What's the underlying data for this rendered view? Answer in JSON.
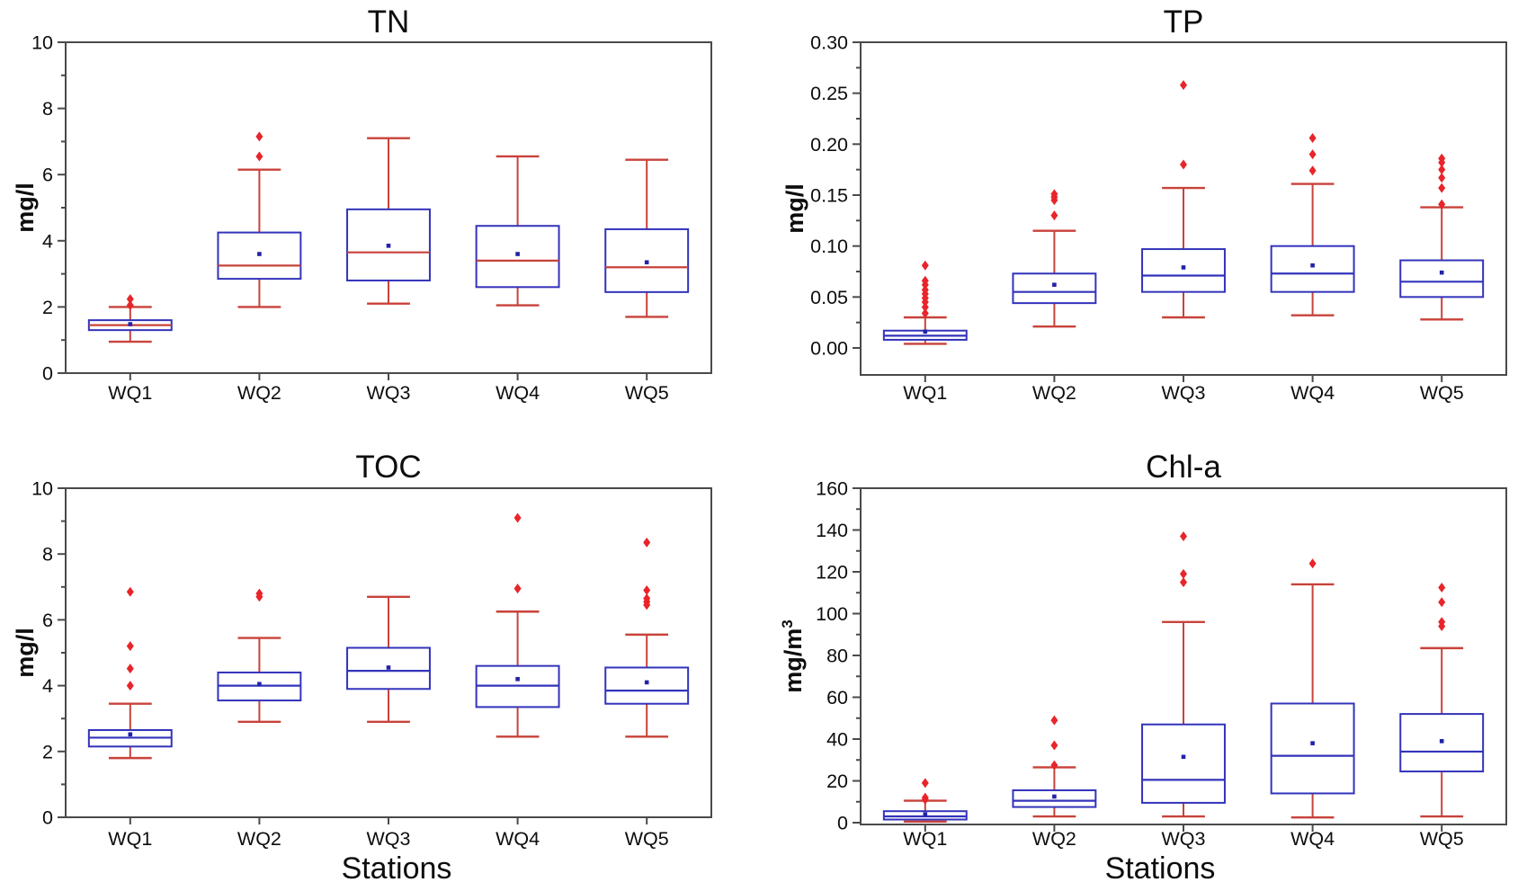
{
  "figure": {
    "background": "#ffffff"
  },
  "colors": {
    "box_stroke": "#3333bb",
    "median_blue": "#3333bb",
    "median_red": "#c8423a",
    "whisker": "#c8423a",
    "outlier": "#e8252a",
    "mean_marker": "#2222aa",
    "axis": "#4a4a4a",
    "text": "#0d0d0d"
  },
  "chart_data": [
    {
      "id": "tn",
      "type": "box",
      "title": "TN",
      "ylabel": "mg/l",
      "ylabel_superscript": "",
      "xlabel": "",
      "categories": [
        "WQ1",
        "WQ2",
        "WQ3",
        "WQ4",
        "WQ5"
      ],
      "ylim": [
        0,
        10
      ],
      "yticks": [
        "0",
        "2",
        "4",
        "6",
        "8",
        "10"
      ],
      "ytick_step": 2,
      "yminor_step": 1,
      "ytick_decimals": 0,
      "grid": false,
      "median_color_key": "median_red",
      "boxes": [
        {
          "category": "WQ1",
          "whisker_low": 0.95,
          "q1": 1.3,
          "median": 1.45,
          "q3": 1.6,
          "whisker_high": 2.0,
          "mean": 1.48,
          "outliers": [
            2.05,
            2.24
          ]
        },
        {
          "category": "WQ2",
          "whisker_low": 2.0,
          "q1": 2.85,
          "median": 3.25,
          "q3": 4.25,
          "whisker_high": 6.15,
          "mean": 3.6,
          "outliers": [
            6.55,
            7.15
          ]
        },
        {
          "category": "WQ3",
          "whisker_low": 2.1,
          "q1": 2.8,
          "median": 3.65,
          "q3": 4.95,
          "whisker_high": 7.1,
          "mean": 3.85,
          "outliers": []
        },
        {
          "category": "WQ4",
          "whisker_low": 2.05,
          "q1": 2.6,
          "median": 3.4,
          "q3": 4.45,
          "whisker_high": 6.55,
          "mean": 3.6,
          "outliers": []
        },
        {
          "category": "WQ5",
          "whisker_low": 1.7,
          "q1": 2.45,
          "median": 3.2,
          "q3": 4.35,
          "whisker_high": 6.45,
          "mean": 3.35,
          "outliers": []
        }
      ]
    },
    {
      "id": "tp",
      "type": "box",
      "title": "TP",
      "ylabel": "mg/l",
      "ylabel_superscript": "",
      "xlabel": "",
      "categories": [
        "WQ1",
        "WQ2",
        "WQ3",
        "WQ4",
        "WQ5"
      ],
      "ylim": [
        0,
        0.3
      ],
      "yticks": [
        "0.00",
        "0.05",
        "0.10",
        "0.15",
        "0.20",
        "0.25",
        "0.30"
      ],
      "ytick_step": 0.05,
      "yminor_step": 0.025,
      "ytick_decimals": 2,
      "grid": false,
      "median_color_key": "median_blue",
      "boxes": [
        {
          "category": "WQ1",
          "whisker_low": 0.004,
          "q1": 0.008,
          "median": 0.012,
          "q3": 0.017,
          "whisker_high": 0.03,
          "mean": 0.016,
          "outliers": [
            0.034,
            0.04,
            0.045,
            0.049,
            0.053,
            0.057,
            0.062,
            0.066,
            0.081
          ]
        },
        {
          "category": "WQ2",
          "whisker_low": 0.021,
          "q1": 0.044,
          "median": 0.055,
          "q3": 0.073,
          "whisker_high": 0.115,
          "mean": 0.062,
          "outliers": [
            0.13,
            0.145,
            0.148,
            0.151
          ]
        },
        {
          "category": "WQ3",
          "whisker_low": 0.03,
          "q1": 0.055,
          "median": 0.071,
          "q3": 0.097,
          "whisker_high": 0.157,
          "mean": 0.079,
          "outliers": [
            0.18,
            0.258
          ]
        },
        {
          "category": "WQ4",
          "whisker_low": 0.032,
          "q1": 0.055,
          "median": 0.073,
          "q3": 0.1,
          "whisker_high": 0.161,
          "mean": 0.081,
          "outliers": [
            0.174,
            0.19,
            0.206
          ]
        },
        {
          "category": "WQ5",
          "whisker_low": 0.028,
          "q1": 0.05,
          "median": 0.065,
          "q3": 0.086,
          "whisker_high": 0.138,
          "mean": 0.074,
          "outliers": [
            0.141,
            0.157,
            0.167,
            0.175,
            0.182,
            0.186
          ]
        }
      ]
    },
    {
      "id": "toc",
      "type": "box",
      "title": "TOC",
      "ylabel": "mg/l",
      "ylabel_superscript": "",
      "xlabel": "Stations",
      "categories": [
        "WQ1",
        "WQ2",
        "WQ3",
        "WQ4",
        "WQ5"
      ],
      "ylim": [
        0,
        10
      ],
      "yticks": [
        "0",
        "2",
        "4",
        "6",
        "8",
        "10"
      ],
      "ytick_step": 2,
      "yminor_step": 1,
      "ytick_decimals": 0,
      "grid": false,
      "median_color_key": "median_blue",
      "boxes": [
        {
          "category": "WQ1",
          "whisker_low": 1.8,
          "q1": 2.15,
          "median": 2.42,
          "q3": 2.65,
          "whisker_high": 3.45,
          "mean": 2.52,
          "outliers": [
            4.0,
            4.52,
            5.2,
            6.85
          ]
        },
        {
          "category": "WQ2",
          "whisker_low": 2.9,
          "q1": 3.55,
          "median": 4.0,
          "q3": 4.4,
          "whisker_high": 5.45,
          "mean": 4.05,
          "outliers": [
            6.7,
            6.8
          ]
        },
        {
          "category": "WQ3",
          "whisker_low": 2.9,
          "q1": 3.9,
          "median": 4.45,
          "q3": 5.15,
          "whisker_high": 6.7,
          "mean": 4.55,
          "outliers": []
        },
        {
          "category": "WQ4",
          "whisker_low": 2.45,
          "q1": 3.35,
          "median": 4.0,
          "q3": 4.6,
          "whisker_high": 6.25,
          "mean": 4.2,
          "outliers": [
            6.95,
            9.1
          ]
        },
        {
          "category": "WQ5",
          "whisker_low": 2.45,
          "q1": 3.45,
          "median": 3.85,
          "q3": 4.55,
          "whisker_high": 5.55,
          "mean": 4.1,
          "outliers": [
            6.45,
            6.55,
            6.65,
            6.9,
            8.35
          ]
        }
      ]
    },
    {
      "id": "chl",
      "type": "box",
      "title": "Chl-a",
      "ylabel": "mg/m",
      "ylabel_superscript": "3",
      "xlabel": "Stations",
      "categories": [
        "WQ1",
        "WQ2",
        "WQ3",
        "WQ4",
        "WQ5"
      ],
      "ylim": [
        0,
        160
      ],
      "yticks": [
        "0",
        "20",
        "40",
        "60",
        "80",
        "100",
        "120",
        "140",
        "160"
      ],
      "ytick_step": 20,
      "yminor_step": 10,
      "ytick_decimals": 0,
      "grid": false,
      "median_color_key": "median_blue",
      "boxes": [
        {
          "category": "WQ1",
          "whisker_low": 0.5,
          "q1": 1.5,
          "median": 3.0,
          "q3": 5.5,
          "whisker_high": 10.5,
          "mean": 4.0,
          "outliers": [
            11,
            12,
            19
          ]
        },
        {
          "category": "WQ2",
          "whisker_low": 3.0,
          "q1": 7.5,
          "median": 10.5,
          "q3": 15.5,
          "whisker_high": 26.5,
          "mean": 12.5,
          "outliers": [
            27.5,
            37,
            49
          ]
        },
        {
          "category": "WQ3",
          "whisker_low": 3.0,
          "q1": 9.5,
          "median": 20.5,
          "q3": 47.0,
          "whisker_high": 96.0,
          "mean": 31.5,
          "outliers": [
            115,
            119,
            137
          ]
        },
        {
          "category": "WQ4",
          "whisker_low": 2.5,
          "q1": 14.0,
          "median": 32.0,
          "q3": 57.0,
          "whisker_high": 114.0,
          "mean": 38.0,
          "outliers": [
            124
          ]
        },
        {
          "category": "WQ5",
          "whisker_low": 3.0,
          "q1": 24.5,
          "median": 34.0,
          "q3": 52.0,
          "whisker_high": 83.5,
          "mean": 39.0,
          "outliers": [
            94,
            96,
            105.5,
            112.5
          ]
        }
      ]
    }
  ]
}
